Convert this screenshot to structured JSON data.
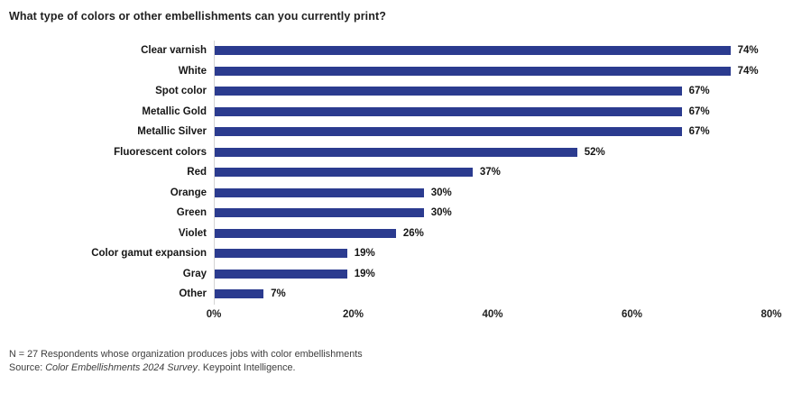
{
  "chart_data": {
    "type": "bar",
    "orientation": "horizontal",
    "title": "What type of colors or other embellishments can you currently print?",
    "categories": [
      "Clear varnish",
      "White",
      "Spot color",
      "Metallic Gold",
      "Metallic Silver",
      "Fluorescent colors",
      "Red",
      "Orange",
      "Green",
      "Violet",
      "Color gamut expansion",
      "Gray",
      "Other"
    ],
    "values": [
      74,
      74,
      67,
      67,
      67,
      52,
      37,
      30,
      30,
      26,
      19,
      19,
      7
    ],
    "value_labels": [
      "74%",
      "74%",
      "67%",
      "67%",
      "67%",
      "52%",
      "37%",
      "30%",
      "30%",
      "26%",
      "19%",
      "19%",
      "7%"
    ],
    "xlabel": "",
    "ylabel": "",
    "xlim": [
      0,
      80
    ],
    "x_ticks": [
      0,
      20,
      40,
      60,
      80
    ],
    "x_tick_labels": [
      "0%",
      "20%",
      "40%",
      "60%",
      "80%"
    ],
    "bar_color": "#2B3B8F",
    "grid": false,
    "legend": false
  },
  "footer": {
    "line1": "N = 27 Respondents whose organization produces jobs with color embellishments",
    "source_prefix": "Source: ",
    "source_italic": "Color Embellishments 2024 Survey",
    "source_suffix": ". Keypoint Intelligence."
  }
}
